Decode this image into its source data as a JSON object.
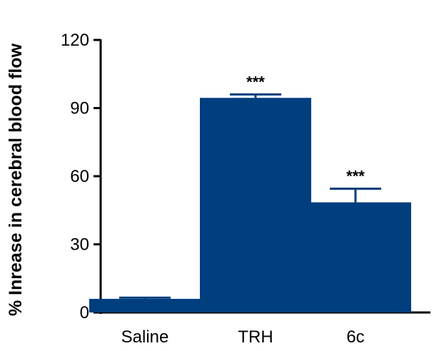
{
  "chart_data": {
    "type": "bar",
    "title": "",
    "xlabel": "",
    "ylabel": "% Inrease in cerebral blood flow",
    "ylim": [
      0,
      120
    ],
    "yticks": [
      0,
      30,
      60,
      90,
      120
    ],
    "categories": [
      "Saline",
      "TRH",
      "6c"
    ],
    "values": [
      6,
      94.5,
      48.5
    ],
    "errors": [
      0.5,
      1.5,
      6
    ],
    "annotations": [
      "",
      "***",
      "***"
    ],
    "bar_color": "#003e7e",
    "grid": false,
    "legend": "none"
  }
}
